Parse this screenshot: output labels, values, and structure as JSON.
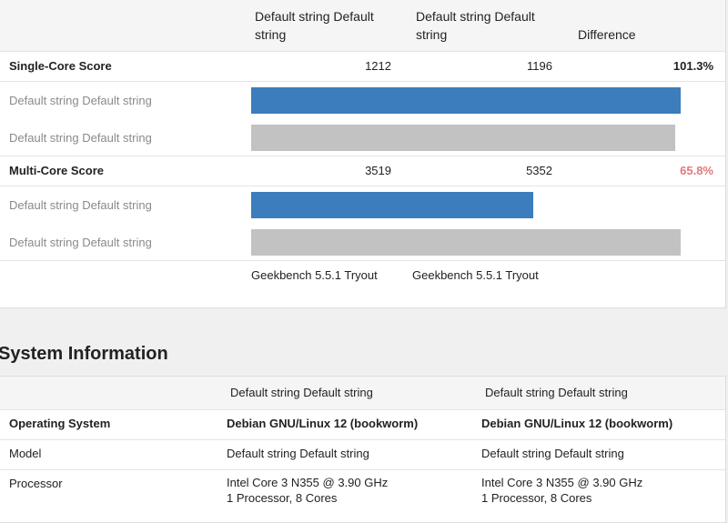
{
  "benchmark": {
    "headers": [
      "Default string Default string",
      "Default string Default string",
      "Difference"
    ],
    "sections": [
      {
        "label": "Single-Core Score",
        "scores": [
          1212,
          1196
        ],
        "difference": "101.3%",
        "difference_color": "#222222",
        "bar_labels": [
          "Default string Default string",
          "Default string Default string"
        ]
      },
      {
        "label": "Multi-Core Score",
        "scores": [
          3519,
          5352
        ],
        "difference": "65.8%",
        "difference_color": "#e07b7b",
        "bar_labels": [
          "Default string Default string",
          "Default string Default string"
        ]
      }
    ],
    "bar_colors": [
      "#3b7dbd",
      "#c2c2c2"
    ],
    "footer": [
      "Geekbench 5.5.1 Tryout",
      "Geekbench 5.5.1 Tryout"
    ]
  },
  "system_information": {
    "title": "System Information",
    "headers": [
      "Default string Default string",
      "Default string Default string"
    ],
    "rows": [
      {
        "label": "Operating System",
        "values": [
          "Debian GNU/Linux 12 (bookworm)",
          "Debian GNU/Linux 12 (bookworm)"
        ]
      },
      {
        "label": "Model",
        "values": [
          "Default string Default string",
          "Default string Default string"
        ]
      },
      {
        "label": "Processor",
        "values": [
          [
            "Intel Core 3 N355 @ 3.90 GHz",
            "1 Processor, 8 Cores"
          ],
          [
            "Intel Core 3 N355 @ 3.90 GHz",
            "1 Processor, 8 Cores"
          ]
        ]
      }
    ]
  }
}
